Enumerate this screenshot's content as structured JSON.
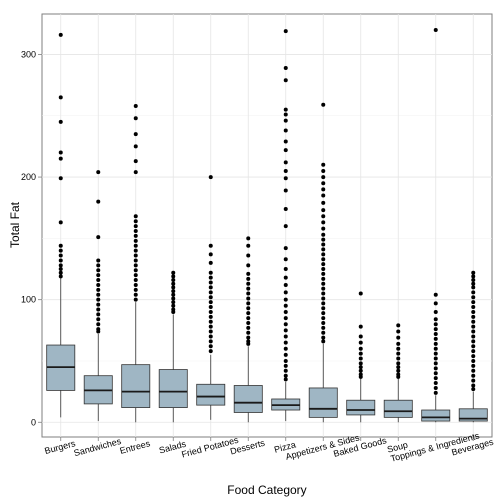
{
  "chart_data": {
    "type": "boxplot",
    "xlabel": "Food Category",
    "ylabel": "Total Fat",
    "ylim": [
      -12,
      333
    ],
    "y_ticks": [
      0,
      100,
      200,
      300
    ],
    "grid": true,
    "legend": "none",
    "box_fill": "#9fb6c4",
    "categories": [
      "Burgers",
      "Sandwiches",
      "Entrees",
      "Salads",
      "Fried Potatoes",
      "Desserts",
      "Pizza",
      "Appetizers & Sides",
      "Baked Goods",
      "Soup",
      "Toppings & Ingredients",
      "Beverages"
    ],
    "boxes": [
      {
        "q1": 26,
        "median": 45,
        "q3": 63,
        "whisker_low": 4,
        "whisker_high": 118,
        "outliers": [
          316,
          265,
          245,
          220,
          215,
          199,
          163,
          144,
          140,
          136,
          132,
          128,
          125,
          122,
          119
        ]
      },
      {
        "q1": 15,
        "median": 26,
        "q3": 38,
        "whisker_low": 1,
        "whisker_high": 72,
        "outliers": [
          204,
          180,
          151,
          132,
          128,
          124,
          120,
          116,
          112,
          108,
          104,
          100,
          96,
          92,
          88,
          84,
          80,
          76,
          74
        ]
      },
      {
        "q1": 12,
        "median": 25,
        "q3": 47,
        "whisker_low": 0,
        "whisker_high": 98,
        "outliers": [
          258,
          248,
          235,
          225,
          213,
          204,
          168,
          164,
          160,
          156,
          152,
          148,
          144,
          140,
          136,
          132,
          128,
          124,
          120,
          116,
          112,
          108,
          104,
          100
        ]
      },
      {
        "q1": 12,
        "median": 25,
        "q3": 43,
        "whisker_low": 0,
        "whisker_high": 88,
        "outliers": [
          122,
          119,
          116,
          113,
          110,
          107,
          104,
          101,
          98,
          95,
          92,
          90
        ]
      },
      {
        "q1": 14,
        "median": 21,
        "q3": 31,
        "whisker_low": 2,
        "whisker_high": 55,
        "outliers": [
          200,
          144,
          137,
          130,
          122,
          118,
          114,
          110,
          106,
          102,
          98,
          94,
          90,
          86,
          82,
          78,
          74,
          70,
          66,
          62,
          58
        ]
      },
      {
        "q1": 8,
        "median": 16,
        "q3": 30,
        "whisker_low": 0,
        "whisker_high": 62,
        "outliers": [
          150,
          144,
          136,
          128,
          121,
          117,
          113,
          109,
          105,
          101,
          97,
          93,
          89,
          85,
          81,
          77,
          73,
          69,
          66,
          64
        ]
      },
      {
        "q1": 10,
        "median": 14,
        "q3": 19,
        "whisker_low": 1,
        "whisker_high": 33,
        "outliers": [
          319,
          289,
          279,
          255,
          251,
          246,
          238,
          229,
          222,
          212,
          205,
          199,
          189,
          174,
          160,
          142,
          133,
          125,
          118,
          112,
          106,
          100,
          95,
          90,
          85,
          80,
          75,
          70,
          65,
          60,
          55,
          50,
          46,
          42,
          38,
          35
        ]
      },
      {
        "q1": 4,
        "median": 11,
        "q3": 28,
        "whisker_low": 0,
        "whisker_high": 64,
        "outliers": [
          259,
          210,
          205,
          200,
          195,
          190,
          185,
          179,
          173,
          168,
          163,
          158,
          153,
          149,
          145,
          141,
          137,
          133,
          129,
          125,
          121,
          117,
          113,
          109,
          105,
          101,
          97,
          93,
          89,
          85,
          81,
          77,
          73,
          69,
          66
        ]
      },
      {
        "q1": 6,
        "median": 10,
        "q3": 18,
        "whisker_low": 0,
        "whisker_high": 36,
        "outliers": [
          105,
          78,
          70,
          65,
          60,
          56,
          52,
          48,
          45,
          42,
          39,
          37
        ]
      },
      {
        "q1": 4,
        "median": 9,
        "q3": 18,
        "whisker_low": 0,
        "whisker_high": 36,
        "outliers": [
          79,
          74,
          69,
          64,
          60,
          56,
          52,
          48,
          45,
          42,
          39,
          37
        ]
      },
      {
        "q1": 1,
        "median": 4,
        "q3": 10,
        "whisker_low": 0,
        "whisker_high": 22,
        "outliers": [
          320,
          104,
          97,
          90,
          84,
          80,
          76,
          72,
          68,
          64,
          60,
          56,
          52,
          48,
          44,
          40,
          36,
          32,
          28,
          24
        ]
      },
      {
        "q1": 1,
        "median": 3,
        "q3": 11,
        "whisker_low": 0,
        "whisker_high": 25,
        "outliers": [
          122,
          119,
          116,
          113,
          110,
          106,
          102,
          98,
          94,
          90,
          86,
          82,
          78,
          74,
          70,
          66,
          62,
          58,
          54,
          50,
          46,
          42,
          38,
          34,
          30,
          27
        ]
      }
    ]
  }
}
